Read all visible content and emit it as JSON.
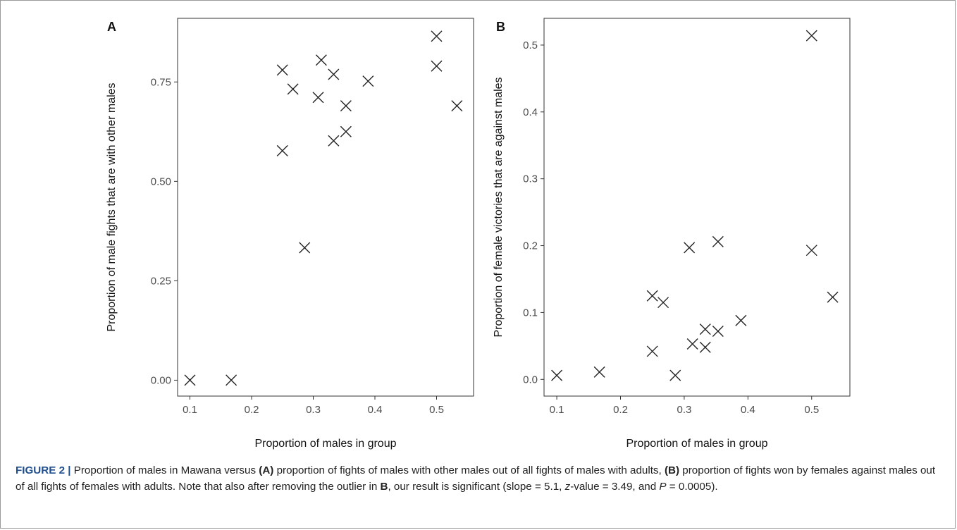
{
  "chart_data": [
    {
      "type": "scatter",
      "panel_label": "A",
      "xlabel": "Proportion of males in group",
      "ylabel": "Proportion of male fights that are with other males",
      "xlim": [
        0.08,
        0.56
      ],
      "ylim": [
        -0.04,
        0.91
      ],
      "xticks": [
        0.1,
        0.2,
        0.3,
        0.4,
        0.5
      ],
      "xtick_labels": [
        "0.1",
        "0.2",
        "0.3",
        "0.4",
        "0.5"
      ],
      "yticks": [
        0.0,
        0.25,
        0.5,
        0.75
      ],
      "ytick_labels": [
        "0.00",
        "0.25",
        "0.50",
        "0.75"
      ],
      "marker": "x",
      "grid": false,
      "points": [
        {
          "x": 0.1,
          "y": 0.0
        },
        {
          "x": 0.167,
          "y": 0.0
        },
        {
          "x": 0.25,
          "y": 0.78
        },
        {
          "x": 0.25,
          "y": 0.577
        },
        {
          "x": 0.267,
          "y": 0.732
        },
        {
          "x": 0.286,
          "y": 0.333
        },
        {
          "x": 0.308,
          "y": 0.711
        },
        {
          "x": 0.313,
          "y": 0.805
        },
        {
          "x": 0.333,
          "y": 0.769
        },
        {
          "x": 0.333,
          "y": 0.602
        },
        {
          "x": 0.353,
          "y": 0.69
        },
        {
          "x": 0.353,
          "y": 0.625
        },
        {
          "x": 0.389,
          "y": 0.752
        },
        {
          "x": 0.5,
          "y": 0.865
        },
        {
          "x": 0.5,
          "y": 0.79
        },
        {
          "x": 0.533,
          "y": 0.69
        }
      ]
    },
    {
      "type": "scatter",
      "panel_label": "B",
      "xlabel": "Proportion of males in group",
      "ylabel": "Proportion of female victories that are against males",
      "xlim": [
        0.08,
        0.56
      ],
      "ylim": [
        -0.025,
        0.54
      ],
      "xticks": [
        0.1,
        0.2,
        0.3,
        0.4,
        0.5
      ],
      "xtick_labels": [
        "0.1",
        "0.2",
        "0.3",
        "0.4",
        "0.5"
      ],
      "yticks": [
        0.0,
        0.1,
        0.2,
        0.3,
        0.4,
        0.5
      ],
      "ytick_labels": [
        "0.0",
        "0.1",
        "0.2",
        "0.3",
        "0.4",
        "0.5"
      ],
      "marker": "x",
      "grid": false,
      "points": [
        {
          "x": 0.1,
          "y": 0.006
        },
        {
          "x": 0.167,
          "y": 0.011
        },
        {
          "x": 0.25,
          "y": 0.125
        },
        {
          "x": 0.25,
          "y": 0.042
        },
        {
          "x": 0.267,
          "y": 0.115
        },
        {
          "x": 0.286,
          "y": 0.006
        },
        {
          "x": 0.308,
          "y": 0.197
        },
        {
          "x": 0.313,
          "y": 0.053
        },
        {
          "x": 0.333,
          "y": 0.075
        },
        {
          "x": 0.333,
          "y": 0.048
        },
        {
          "x": 0.353,
          "y": 0.206
        },
        {
          "x": 0.353,
          "y": 0.072
        },
        {
          "x": 0.389,
          "y": 0.088
        },
        {
          "x": 0.5,
          "y": 0.514
        },
        {
          "x": 0.5,
          "y": 0.193
        },
        {
          "x": 0.533,
          "y": 0.123
        }
      ]
    }
  ],
  "caption": {
    "label": "FIGURE 2 |",
    "t1": " Proportion of males in Mawana versus ",
    "a_ref": "(A)",
    "t2": " proportion of fights of males with other males out of all fights of males with adults, ",
    "b_ref": "(B)",
    "t3": " proportion of fights won by females against males out of all fights of females with adults. Note that also after removing the outlier in ",
    "b_ref2": "B",
    "t4": ", our result is significant (slope = 5.1, ",
    "z_sym": "z",
    "t5": "-value = 3.49, and ",
    "p_sym": "P",
    "t6": " = 0.0005)."
  }
}
